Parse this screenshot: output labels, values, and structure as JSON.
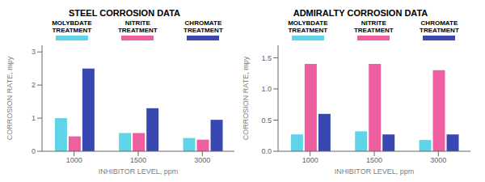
{
  "chart_data": [
    {
      "type": "bar",
      "title": "STEEL CORROSION DATA",
      "categories": [
        "1000",
        "1500",
        "3000"
      ],
      "x_label": "INHIBITOR LEVEL, ppm",
      "y_label": "CORROSION RATE, mpy",
      "series": [
        {
          "name": "MOLYBDATE\nTREATMENT",
          "color": "#5FD3E8",
          "values": [
            1.0,
            0.55,
            0.4
          ]
        },
        {
          "name": "NITRITE\nTREATMENT",
          "color": "#EE5FA0",
          "values": [
            0.45,
            0.55,
            0.35
          ]
        },
        {
          "name": "CHROMATE\nTREATMENT",
          "color": "#3848B0",
          "values": [
            2.5,
            1.3,
            0.95
          ]
        }
      ],
      "ylim": [
        0,
        3.2
      ],
      "yticks": [
        0,
        1,
        2,
        3
      ],
      "grid": false,
      "legend": "top"
    },
    {
      "type": "bar",
      "title": "ADMIRALTY CORROSION DATA",
      "categories": [
        "1000",
        "1500",
        "3000"
      ],
      "x_label": "INHIBITOR LEVEL, ppm",
      "y_label": "CORROSION RATE, mpy",
      "series": [
        {
          "name": "MOLYBDATE\nTREATMENT",
          "color": "#5FD3E8",
          "values": [
            0.27,
            0.32,
            0.18
          ]
        },
        {
          "name": "NITRITE\nTREATMENT",
          "color": "#EE5FA0",
          "values": [
            1.4,
            1.4,
            1.3
          ]
        },
        {
          "name": "CHROMATE\nTREATMENT",
          "color": "#3848B0",
          "values": [
            0.6,
            0.27,
            0.27
          ]
        }
      ],
      "ylim": [
        0,
        1.7
      ],
      "yticks": [
        {
          "value": 0,
          "label": "0.0"
        },
        0.5,
        {
          "value": 1,
          "label": "1.0"
        },
        1.5
      ],
      "grid": false,
      "legend": "top"
    }
  ]
}
